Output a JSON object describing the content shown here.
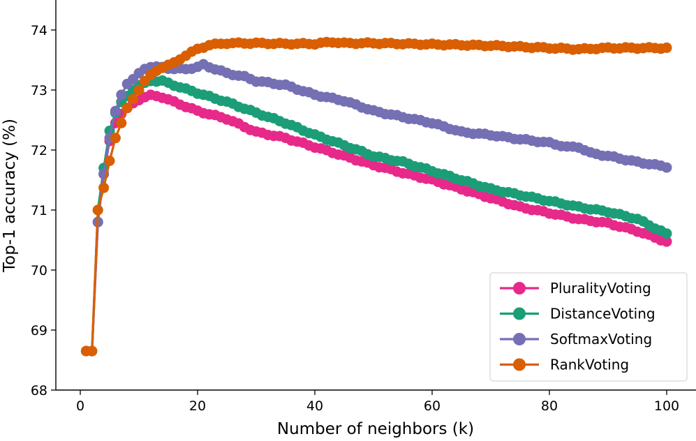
{
  "chart_data": {
    "type": "line",
    "title": "",
    "xlabel": "Number of neighbors (k)",
    "ylabel": "Top-1 accuracy (%)",
    "xlim": [
      -3,
      104
    ],
    "ylim": [
      68,
      74.5
    ],
    "xticks": [
      0,
      20,
      40,
      60,
      80,
      100
    ],
    "yticks": [
      68,
      69,
      70,
      71,
      72,
      73,
      74
    ],
    "x_tick_labels": [
      "0",
      "20",
      "40",
      "60",
      "80",
      "100"
    ],
    "y_tick_labels": [
      "68",
      "69",
      "70",
      "71",
      "72",
      "73",
      "74"
    ],
    "legend_position": "lower-right",
    "series": [
      {
        "name": "PluralityVoting",
        "color": "#e7298a",
        "anchors": [
          [
            1,
            68.65
          ],
          [
            2,
            68.65
          ],
          [
            3,
            70.8
          ],
          [
            4,
            71.6
          ],
          [
            5,
            72.15
          ],
          [
            6,
            72.45
          ],
          [
            7,
            72.6
          ],
          [
            8,
            72.7
          ],
          [
            9,
            72.78
          ],
          [
            10,
            72.83
          ],
          [
            11,
            72.88
          ],
          [
            12,
            72.92
          ],
          [
            14,
            72.88
          ],
          [
            16,
            72.8
          ],
          [
            20,
            72.65
          ],
          [
            25,
            72.52
          ],
          [
            30,
            72.3
          ],
          [
            35,
            72.2
          ],
          [
            40,
            72.05
          ],
          [
            45,
            71.9
          ],
          [
            50,
            71.75
          ],
          [
            55,
            71.62
          ],
          [
            60,
            71.5
          ],
          [
            65,
            71.35
          ],
          [
            70,
            71.2
          ],
          [
            75,
            71.05
          ],
          [
            80,
            70.95
          ],
          [
            85,
            70.85
          ],
          [
            90,
            70.78
          ],
          [
            95,
            70.65
          ],
          [
            100,
            70.47
          ]
        ]
      },
      {
        "name": "DistanceVoting",
        "color": "#1b9e77",
        "anchors": [
          [
            1,
            68.65
          ],
          [
            2,
            68.65
          ],
          [
            3,
            71.0
          ],
          [
            4,
            71.7
          ],
          [
            5,
            72.32
          ],
          [
            6,
            72.62
          ],
          [
            7,
            72.8
          ],
          [
            8,
            72.9
          ],
          [
            9,
            73.0
          ],
          [
            10,
            73.08
          ],
          [
            11,
            73.12
          ],
          [
            12,
            73.15
          ],
          [
            14,
            73.15
          ],
          [
            16,
            73.08
          ],
          [
            20,
            72.95
          ],
          [
            25,
            72.8
          ],
          [
            30,
            72.62
          ],
          [
            35,
            72.45
          ],
          [
            40,
            72.25
          ],
          [
            45,
            72.08
          ],
          [
            50,
            71.9
          ],
          [
            55,
            71.8
          ],
          [
            60,
            71.65
          ],
          [
            65,
            71.5
          ],
          [
            70,
            71.35
          ],
          [
            75,
            71.25
          ],
          [
            80,
            71.15
          ],
          [
            85,
            71.05
          ],
          [
            90,
            70.97
          ],
          [
            95,
            70.85
          ],
          [
            100,
            70.6
          ]
        ]
      },
      {
        "name": "SoftmaxVoting",
        "color": "#7570b3",
        "anchors": [
          [
            1,
            68.65
          ],
          [
            2,
            68.65
          ],
          [
            3,
            70.8
          ],
          [
            4,
            71.6
          ],
          [
            5,
            72.2
          ],
          [
            6,
            72.65
          ],
          [
            7,
            72.92
          ],
          [
            8,
            73.1
          ],
          [
            9,
            73.18
          ],
          [
            10,
            73.28
          ],
          [
            11,
            73.35
          ],
          [
            12,
            73.38
          ],
          [
            14,
            73.38
          ],
          [
            16,
            73.35
          ],
          [
            18,
            73.35
          ],
          [
            20,
            73.38
          ],
          [
            21,
            73.42
          ],
          [
            23,
            73.35
          ],
          [
            25,
            73.28
          ],
          [
            28,
            73.22
          ],
          [
            30,
            73.15
          ],
          [
            35,
            73.08
          ],
          [
            40,
            72.92
          ],
          [
            45,
            72.82
          ],
          [
            50,
            72.65
          ],
          [
            55,
            72.55
          ],
          [
            60,
            72.45
          ],
          [
            65,
            72.3
          ],
          [
            70,
            72.25
          ],
          [
            75,
            72.18
          ],
          [
            80,
            72.12
          ],
          [
            83,
            72.05
          ],
          [
            85,
            72.05
          ],
          [
            87,
            71.95
          ],
          [
            90,
            71.9
          ],
          [
            95,
            71.8
          ],
          [
            100,
            71.72
          ]
        ]
      },
      {
        "name": "RankVoting",
        "color": "#d95f02",
        "anchors": [
          [
            1,
            68.65
          ],
          [
            2,
            68.65
          ],
          [
            3,
            71.0
          ],
          [
            4,
            71.37
          ],
          [
            5,
            71.82
          ],
          [
            6,
            72.2
          ],
          [
            7,
            72.45
          ],
          [
            8,
            72.7
          ],
          [
            9,
            72.85
          ],
          [
            10,
            73.0
          ],
          [
            11,
            73.15
          ],
          [
            12,
            73.25
          ],
          [
            13,
            73.32
          ],
          [
            14,
            73.38
          ],
          [
            16,
            73.45
          ],
          [
            18,
            73.58
          ],
          [
            20,
            73.68
          ],
          [
            22,
            73.75
          ],
          [
            25,
            73.78
          ],
          [
            30,
            73.78
          ],
          [
            35,
            73.77
          ],
          [
            40,
            73.77
          ],
          [
            43,
            73.8
          ],
          [
            45,
            73.78
          ],
          [
            50,
            73.78
          ],
          [
            55,
            73.77
          ],
          [
            60,
            73.76
          ],
          [
            65,
            73.75
          ],
          [
            70,
            73.74
          ],
          [
            75,
            73.72
          ],
          [
            80,
            73.7
          ],
          [
            85,
            73.68
          ],
          [
            90,
            73.7
          ],
          [
            95,
            73.7
          ],
          [
            100,
            73.7
          ]
        ]
      }
    ]
  }
}
